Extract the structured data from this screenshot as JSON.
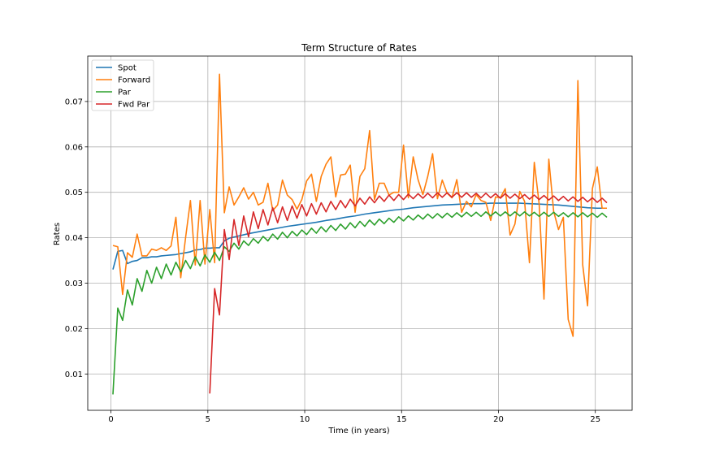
{
  "chart_data": {
    "type": "line",
    "title": "Term Structure of Rates",
    "xlabel": "Time (in years)",
    "ylabel": "Rates",
    "xlim": [
      -1.2,
      26.9
    ],
    "ylim": [
      0.002,
      0.08
    ],
    "xticks": [
      0,
      5,
      10,
      15,
      20,
      25
    ],
    "xtick_labels": [
      "0",
      "5",
      "10",
      "15",
      "20",
      "25"
    ],
    "yticks": [
      0.01,
      0.02,
      0.03,
      0.04,
      0.05,
      0.06,
      0.07
    ],
    "ytick_labels": [
      "0.01",
      "0.02",
      "0.03",
      "0.04",
      "0.05",
      "0.06",
      "0.07"
    ],
    "grid": true,
    "legend_position": "upper-left",
    "series": [
      {
        "name": "Spot",
        "color": "#1f77b4",
        "x": [
          0.1,
          0.35,
          0.6,
          0.85,
          1.1,
          1.35,
          1.6,
          1.85,
          2.1,
          2.35,
          2.6,
          2.85,
          3.1,
          3.35,
          3.6,
          3.85,
          4.1,
          4.35,
          4.6,
          4.85,
          5.1,
          5.35,
          5.6,
          5.85,
          6.1,
          6.6,
          7.1,
          7.6,
          8.1,
          8.6,
          9.1,
          9.6,
          10.1,
          10.6,
          11.1,
          11.6,
          12.1,
          12.6,
          13.1,
          13.6,
          14.1,
          14.6,
          15.1,
          15.6,
          16.1,
          16.6,
          17.1,
          17.6,
          18.1,
          18.6,
          19.1,
          19.6,
          20.1,
          20.6,
          21.1,
          21.6,
          22.1,
          22.6,
          23.1,
          23.6,
          24.1,
          24.6,
          25.1,
          25.6
        ],
        "values": [
          0.033,
          0.037,
          0.0372,
          0.0343,
          0.0348,
          0.035,
          0.0356,
          0.0356,
          0.0358,
          0.0358,
          0.036,
          0.0361,
          0.0362,
          0.0363,
          0.0365,
          0.0367,
          0.0369,
          0.0373,
          0.0374,
          0.0377,
          0.0377,
          0.0378,
          0.0378,
          0.0393,
          0.0399,
          0.0404,
          0.0409,
          0.0413,
          0.0417,
          0.0421,
          0.0425,
          0.0428,
          0.0431,
          0.0434,
          0.0438,
          0.0441,
          0.0445,
          0.0448,
          0.0452,
          0.0455,
          0.0458,
          0.0461,
          0.0463,
          0.0466,
          0.0468,
          0.047,
          0.0472,
          0.0473,
          0.0474,
          0.0475,
          0.0475,
          0.0476,
          0.0476,
          0.0476,
          0.0476,
          0.0475,
          0.0474,
          0.0473,
          0.0472,
          0.047,
          0.0468,
          0.0466,
          0.0465,
          0.0465
        ]
      },
      {
        "name": "Forward",
        "color": "#ff7f0e",
        "x": [
          0.1,
          0.35,
          0.6,
          0.85,
          1.1,
          1.35,
          1.6,
          1.85,
          2.1,
          2.35,
          2.6,
          2.85,
          3.1,
          3.35,
          3.6,
          3.85,
          4.1,
          4.35,
          4.6,
          4.85,
          5.1,
          5.35,
          5.6,
          5.85,
          6.1,
          6.35,
          6.6,
          6.85,
          7.1,
          7.35,
          7.6,
          7.85,
          8.1,
          8.35,
          8.6,
          8.85,
          9.1,
          9.35,
          9.6,
          9.85,
          10.1,
          10.35,
          10.6,
          10.85,
          11.1,
          11.35,
          11.6,
          11.85,
          12.1,
          12.35,
          12.6,
          12.85,
          13.1,
          13.35,
          13.6,
          13.85,
          14.1,
          14.35,
          14.6,
          14.85,
          15.1,
          15.35,
          15.6,
          15.85,
          16.1,
          16.35,
          16.6,
          16.85,
          17.1,
          17.35,
          17.6,
          17.85,
          18.1,
          18.35,
          18.6,
          18.85,
          19.1,
          19.35,
          19.6,
          19.85,
          20.1,
          20.35,
          20.6,
          20.85,
          21.1,
          21.35,
          21.6,
          21.85,
          22.1,
          22.35,
          22.6,
          22.85,
          23.1,
          23.35,
          23.6,
          23.85,
          24.1,
          24.35,
          24.6,
          24.85,
          25.1,
          25.35,
          25.6
        ],
        "values": [
          0.0383,
          0.038,
          0.0275,
          0.0367,
          0.0357,
          0.0408,
          0.036,
          0.036,
          0.0375,
          0.0372,
          0.0378,
          0.0372,
          0.0382,
          0.0445,
          0.0312,
          0.04,
          0.0482,
          0.034,
          0.0482,
          0.0342,
          0.0462,
          0.0345,
          0.076,
          0.0455,
          0.0512,
          0.0472,
          0.049,
          0.051,
          0.0485,
          0.05,
          0.0472,
          0.0478,
          0.052,
          0.046,
          0.0472,
          0.0527,
          0.0494,
          0.0484,
          0.0463,
          0.0484,
          0.0525,
          0.054,
          0.048,
          0.0535,
          0.0562,
          0.0578,
          0.049,
          0.0538,
          0.054,
          0.056,
          0.0456,
          0.0535,
          0.0552,
          0.0636,
          0.0484,
          0.052,
          0.052,
          0.0494,
          0.05,
          0.05,
          0.0604,
          0.0488,
          0.0578,
          0.0528,
          0.0495,
          0.0535,
          0.0585,
          0.0486,
          0.0527,
          0.0498,
          0.0488,
          0.0528,
          0.0456,
          0.048,
          0.0468,
          0.0495,
          0.0482,
          0.0478,
          0.0438,
          0.049,
          0.0488,
          0.0508,
          0.0406,
          0.043,
          0.0502,
          0.048,
          0.0345,
          0.0566,
          0.0475,
          0.0265,
          0.0573,
          0.0458,
          0.0418,
          0.0445,
          0.022,
          0.0183,
          0.0746,
          0.034,
          0.025,
          0.0508,
          0.0556,
          0.0465,
          0.0465
        ]
      },
      {
        "name": "Par",
        "color": "#2ca02c",
        "x": [
          0.1,
          0.35,
          0.6,
          0.85,
          1.1,
          1.35,
          1.6,
          1.85,
          2.1,
          2.35,
          2.6,
          2.85,
          3.1,
          3.35,
          3.6,
          3.85,
          4.1,
          4.35,
          4.6,
          4.85,
          5.1,
          5.35,
          5.6,
          5.85,
          6.1,
          6.35,
          6.6,
          6.85,
          7.1,
          7.35,
          7.6,
          7.85,
          8.1,
          8.35,
          8.6,
          8.85,
          9.1,
          9.35,
          9.6,
          9.85,
          10.1,
          10.35,
          10.6,
          10.85,
          11.1,
          11.35,
          11.6,
          11.85,
          12.1,
          12.35,
          12.6,
          12.85,
          13.1,
          13.35,
          13.6,
          13.85,
          14.1,
          14.35,
          14.6,
          14.85,
          15.1,
          15.35,
          15.6,
          15.85,
          16.1,
          16.35,
          16.6,
          16.85,
          17.1,
          17.35,
          17.6,
          17.85,
          18.1,
          18.35,
          18.6,
          18.85,
          19.1,
          19.35,
          19.6,
          19.85,
          20.1,
          20.35,
          20.6,
          20.85,
          21.1,
          21.35,
          21.6,
          21.85,
          22.1,
          22.35,
          22.6,
          22.85,
          23.1,
          23.35,
          23.6,
          23.85,
          24.1,
          24.35,
          24.6,
          24.85,
          25.1,
          25.35,
          25.6
        ],
        "values": [
          0.0055,
          0.0245,
          0.0218,
          0.0285,
          0.0252,
          0.031,
          0.0282,
          0.0328,
          0.03,
          0.0335,
          0.031,
          0.0342,
          0.0318,
          0.0346,
          0.0325,
          0.035,
          0.0332,
          0.0358,
          0.0338,
          0.0362,
          0.0346,
          0.0368,
          0.035,
          0.038,
          0.037,
          0.0388,
          0.0375,
          0.0393,
          0.0383,
          0.0398,
          0.0388,
          0.0403,
          0.0393,
          0.0408,
          0.0397,
          0.0412,
          0.04,
          0.0414,
          0.0404,
          0.0417,
          0.0407,
          0.0421,
          0.041,
          0.0424,
          0.0413,
          0.0427,
          0.0416,
          0.043,
          0.0419,
          0.0433,
          0.0422,
          0.0436,
          0.0425,
          0.0439,
          0.0428,
          0.0441,
          0.0431,
          0.0443,
          0.0434,
          0.0446,
          0.0437,
          0.0448,
          0.0439,
          0.045,
          0.0441,
          0.0452,
          0.0443,
          0.0453,
          0.0444,
          0.0454,
          0.0445,
          0.0455,
          0.0446,
          0.0456,
          0.0447,
          0.0456,
          0.0447,
          0.0457,
          0.0448,
          0.0457,
          0.0448,
          0.0457,
          0.0448,
          0.0457,
          0.0448,
          0.0457,
          0.0448,
          0.0456,
          0.0447,
          0.0456,
          0.0447,
          0.0456,
          0.0447,
          0.0455,
          0.0446,
          0.0455,
          0.0446,
          0.0455,
          0.0446,
          0.0454,
          0.0445,
          0.0454,
          0.0445
        ]
      },
      {
        "name": "Fwd Par",
        "color": "#d62728",
        "x": [
          5.1,
          5.35,
          5.6,
          5.85,
          6.1,
          6.35,
          6.6,
          6.85,
          7.1,
          7.35,
          7.6,
          7.85,
          8.1,
          8.35,
          8.6,
          8.85,
          9.1,
          9.35,
          9.6,
          9.85,
          10.1,
          10.35,
          10.6,
          10.85,
          11.1,
          11.35,
          11.6,
          11.85,
          12.1,
          12.35,
          12.6,
          12.85,
          13.1,
          13.35,
          13.6,
          13.85,
          14.1,
          14.35,
          14.6,
          14.85,
          15.1,
          15.35,
          15.6,
          15.85,
          16.1,
          16.35,
          16.6,
          16.85,
          17.1,
          17.35,
          17.6,
          17.85,
          18.1,
          18.35,
          18.6,
          18.85,
          19.1,
          19.35,
          19.6,
          19.85,
          20.1,
          20.35,
          20.6,
          20.85,
          21.1,
          21.35,
          21.6,
          21.85,
          22.1,
          22.35,
          22.6,
          22.85,
          23.1,
          23.35,
          23.6,
          23.85,
          24.1,
          24.35,
          24.6,
          24.85,
          25.1,
          25.35,
          25.6
        ],
        "values": [
          0.0057,
          0.0288,
          0.023,
          0.0418,
          0.0352,
          0.044,
          0.0383,
          0.0448,
          0.0402,
          0.0457,
          0.042,
          0.0462,
          0.0428,
          0.0466,
          0.0433,
          0.0468,
          0.0438,
          0.047,
          0.0443,
          0.0473,
          0.0448,
          0.0475,
          0.0452,
          0.0477,
          0.0457,
          0.048,
          0.0462,
          0.0482,
          0.0466,
          0.0485,
          0.047,
          0.0487,
          0.0474,
          0.049,
          0.0477,
          0.0492,
          0.048,
          0.0494,
          0.0482,
          0.0495,
          0.0484,
          0.0496,
          0.0486,
          0.0497,
          0.0487,
          0.0498,
          0.0488,
          0.0499,
          0.0489,
          0.0499,
          0.0489,
          0.0499,
          0.0489,
          0.0499,
          0.0489,
          0.0498,
          0.0488,
          0.0498,
          0.0488,
          0.0497,
          0.0487,
          0.0497,
          0.0487,
          0.0496,
          0.0486,
          0.0495,
          0.0485,
          0.0494,
          0.0484,
          0.0493,
          0.0483,
          0.0492,
          0.0482,
          0.0491,
          0.0481,
          0.049,
          0.048,
          0.0489,
          0.0479,
          0.0488,
          0.0478,
          0.0487,
          0.0477
        ]
      }
    ]
  }
}
